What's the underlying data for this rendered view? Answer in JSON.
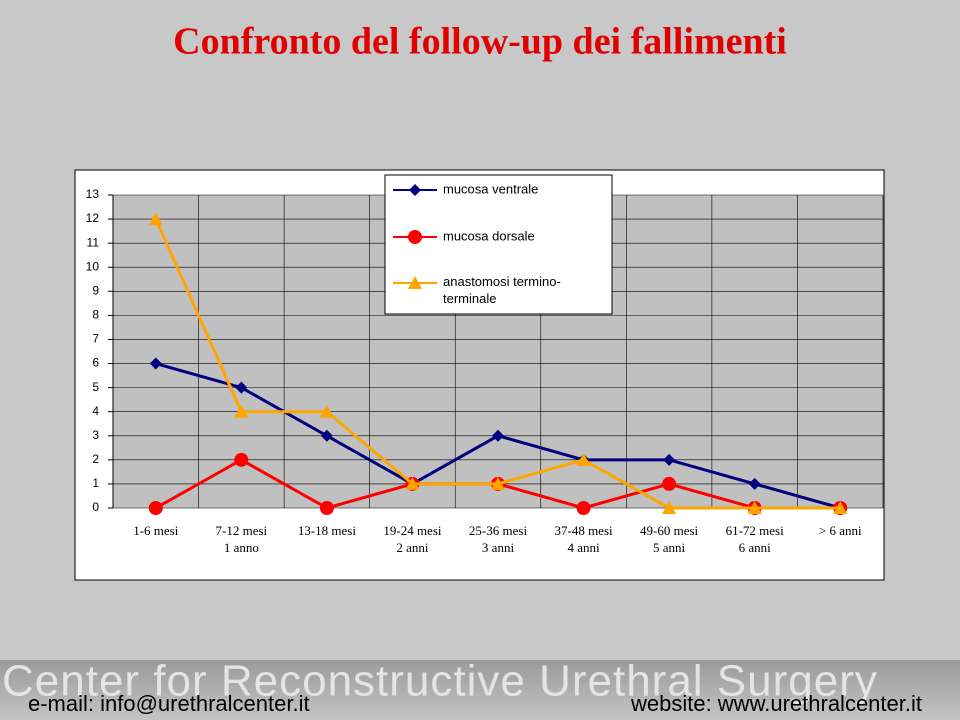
{
  "chart_data": {
    "type": "line",
    "title": "Confronto del follow-up dei fallimenti",
    "categories": [
      [
        "1-6 mesi"
      ],
      [
        "7-12 mesi",
        "1 anno"
      ],
      [
        "13-18 mesi"
      ],
      [
        "19-24 mesi",
        "2 anni"
      ],
      [
        "25-36 mesi",
        "3 anni"
      ],
      [
        "37-48 mesi",
        "4 anni"
      ],
      [
        "49-60 mesi",
        "5 anni"
      ],
      [
        "61-72 mesi",
        "6 anni"
      ],
      [
        "> 6 anni"
      ]
    ],
    "series": [
      {
        "name": "mucosa ventrale",
        "color": "#000080",
        "marker": "diamond",
        "values": [
          6,
          5,
          3,
          1,
          3,
          2,
          2,
          1,
          0
        ]
      },
      {
        "name": "mucosa dorsale",
        "color": "#ff0000",
        "marker": "circle",
        "values": [
          0,
          2,
          0,
          1,
          1,
          0,
          1,
          0,
          0
        ]
      },
      {
        "name": "anastomosi termino-terminale",
        "color": "#ffa500",
        "marker": "triangle",
        "values": [
          12,
          4,
          4,
          1,
          1,
          2,
          0,
          0,
          0
        ]
      }
    ],
    "ylim": [
      0,
      13
    ],
    "yticks": [
      0,
      1,
      2,
      3,
      4,
      5,
      6,
      7,
      8,
      9,
      10,
      11,
      12,
      13
    ],
    "grid": true
  },
  "footer": {
    "brand": "Center for Reconstructive Urethral Surgery",
    "email": "e-mail: info@urethralcenter.it",
    "website": "website: www.urethralcenter.it"
  }
}
